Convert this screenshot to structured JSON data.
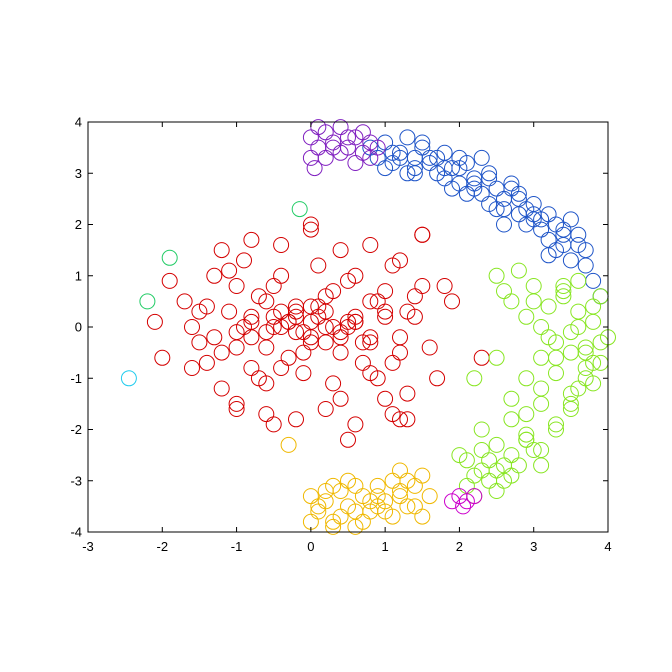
{
  "chart_data": {
    "type": "scatter",
    "title": "",
    "xlabel": "",
    "ylabel": "",
    "xlim": [
      -3,
      4
    ],
    "ylim": [
      -4,
      4
    ],
    "xticks": [
      "-3",
      "-2",
      "-1",
      "0",
      "1",
      "2",
      "3",
      "4"
    ],
    "yticks": [
      "-4",
      "-3",
      "-2",
      "-1",
      "0",
      "1",
      "2",
      "3",
      "4"
    ],
    "grid": false,
    "legend": "none",
    "marker": "open-circle",
    "series": [
      {
        "color": "#d40000",
        "x": [
          -1.9,
          -1.7,
          -1.6,
          -1.5,
          -1.4,
          -1.3,
          -1.2,
          -1.1,
          -1.0,
          -0.9,
          -0.8,
          -0.7,
          -0.6,
          -0.5,
          -0.4,
          -0.3,
          -0.2,
          -0.1,
          0.0,
          0.1,
          0.2,
          0.3,
          0.4,
          0.5,
          0.6,
          0.7,
          0.8,
          0.9,
          1.0,
          1.1,
          1.2,
          1.3,
          1.4,
          1.5,
          1.6,
          -1.6,
          -1.4,
          -1.2,
          -1.0,
          -0.8,
          -0.6,
          -0.4,
          -0.2,
          0.0,
          0.2,
          0.4,
          0.6,
          0.8,
          1.0,
          1.2,
          1.4,
          -1.5,
          -1.3,
          -1.1,
          -0.9,
          -0.7,
          -0.5,
          -0.3,
          -0.1,
          0.1,
          0.3,
          0.5,
          0.7,
          0.9,
          1.1,
          1.3,
          -1.2,
          -1.0,
          -0.8,
          -0.6,
          -0.4,
          -0.2,
          0.0,
          0.2,
          0.4,
          0.6,
          0.8,
          1.0,
          1.2,
          -1.0,
          -0.8,
          -0.6,
          -0.4,
          -0.2,
          0.0,
          0.2,
          0.4,
          0.6,
          0.8,
          1.0,
          -0.8,
          -0.6,
          -0.4,
          -0.2,
          0.0,
          0.2,
          0.4,
          0.6,
          0.8,
          -0.5,
          -0.3,
          -0.1,
          0.1,
          0.3,
          0.5,
          -2.0,
          -2.1,
          -1.0,
          -0.5,
          0.0,
          0.5,
          1.1,
          1.3,
          1.5,
          1.7,
          1.8,
          1.9,
          2.3,
          1.5,
          1.2
        ],
        "y": [
          0.9,
          0.5,
          0.0,
          -0.3,
          -0.7,
          1.0,
          -1.2,
          0.3,
          -0.4,
          1.3,
          -0.8,
          0.6,
          -1.1,
          0.2,
          1.0,
          -0.6,
          0.4,
          -0.9,
          0.1,
          1.2,
          -0.3,
          0.7,
          -1.4,
          0.0,
          1.0,
          -0.7,
          0.5,
          -1.0,
          0.3,
          1.2,
          -0.5,
          -1.3,
          0.2,
          0.8,
          -0.4,
          -0.8,
          0.4,
          -0.5,
          0.8,
          -0.2,
          0.5,
          -0.8,
          0.3,
          -0.3,
          0.6,
          -0.5,
          0.2,
          -0.9,
          0.7,
          -0.2,
          0.6,
          0.3,
          -0.2,
          1.1,
          0.0,
          -1.0,
          0.8,
          0.1,
          -0.5,
          0.4,
          -1.1,
          0.9,
          -0.3,
          0.5,
          -0.7,
          0.3,
          1.5,
          -1.5,
          1.7,
          -1.7,
          1.6,
          -1.8,
          1.9,
          -1.6,
          1.5,
          -1.9,
          1.6,
          -1.4,
          1.3,
          -0.1,
          0.2,
          -0.4,
          0.3,
          -0.1,
          0.4,
          0.0,
          -0.2,
          0.1,
          -0.3,
          0.2,
          0.1,
          -0.1,
          0.0,
          0.2,
          -0.2,
          0.3,
          -0.1,
          0.1,
          -0.2,
          0.0,
          0.1,
          -0.1,
          0.2,
          0.0,
          0.1,
          -0.6,
          0.1,
          -1.6,
          -1.9,
          2.0,
          -2.2,
          -1.7,
          -1.8,
          1.8,
          -1.0,
          0.8,
          0.5,
          -0.6,
          1.8,
          -1.8
        ]
      },
      {
        "color": "#1f55c8",
        "x": [
          0.8,
          0.9,
          1.0,
          1.1,
          1.2,
          1.3,
          1.4,
          1.5,
          1.6,
          1.7,
          1.8,
          1.9,
          2.0,
          2.1,
          2.2,
          2.3,
          2.4,
          2.5,
          2.6,
          2.7,
          2.8,
          2.9,
          3.0,
          3.1,
          3.2,
          3.3,
          3.4,
          3.5,
          3.6,
          3.7,
          3.8,
          3.9,
          1.0,
          1.2,
          1.4,
          1.6,
          1.8,
          2.0,
          2.2,
          2.4,
          2.6,
          2.8,
          3.0,
          3.2,
          3.4,
          3.6,
          1.1,
          1.3,
          1.5,
          1.7,
          1.9,
          2.1,
          2.3,
          2.5,
          2.7,
          2.9,
          3.1,
          3.3,
          3.5,
          3.7,
          2.0,
          2.4,
          2.8,
          3.2,
          1.4,
          1.8,
          2.2,
          2.6,
          3.0,
          3.4
        ],
        "y": [
          3.5,
          3.3,
          3.6,
          3.2,
          3.4,
          3.7,
          3.1,
          3.5,
          3.3,
          3.0,
          3.4,
          3.1,
          2.8,
          3.2,
          2.9,
          2.6,
          3.0,
          2.7,
          2.3,
          2.8,
          2.5,
          2.0,
          2.4,
          2.1,
          1.7,
          2.0,
          1.6,
          1.3,
          1.6,
          1.2,
          0.9,
          0.6,
          3.1,
          3.3,
          3.0,
          3.2,
          2.9,
          3.1,
          2.7,
          2.9,
          2.5,
          2.6,
          2.2,
          2.2,
          1.9,
          1.8,
          3.4,
          3.0,
          3.6,
          3.3,
          2.7,
          2.6,
          3.3,
          2.3,
          2.7,
          2.3,
          1.9,
          1.5,
          2.1,
          1.5,
          3.3,
          2.4,
          2.2,
          1.4,
          3.3,
          3.1,
          2.8,
          2.0,
          2.1,
          1.8
        ]
      },
      {
        "color": "#8020c0",
        "x": [
          0.0,
          0.1,
          0.2,
          0.3,
          0.4,
          0.5,
          0.6,
          0.7,
          0.8,
          0.9,
          0.0,
          0.2,
          0.4,
          0.6,
          0.8,
          0.1,
          0.3,
          0.5,
          0.7,
          0.05
        ],
        "y": [
          3.7,
          3.5,
          3.8,
          3.6,
          3.9,
          3.5,
          3.7,
          3.4,
          3.6,
          3.5,
          3.3,
          3.3,
          3.4,
          3.2,
          3.3,
          3.9,
          3.5,
          3.7,
          3.8,
          3.1
        ]
      },
      {
        "color": "#88e622",
        "x": [
          2.5,
          2.6,
          2.7,
          2.8,
          2.9,
          3.0,
          3.1,
          3.2,
          3.3,
          3.4,
          3.5,
          3.6,
          3.7,
          3.8,
          3.9,
          4.0,
          3.0,
          3.2,
          3.4,
          3.6,
          3.8,
          3.1,
          3.3,
          3.5,
          3.7,
          3.9,
          2.9,
          3.1,
          3.3,
          3.5,
          3.7,
          2.7,
          2.9,
          3.1,
          3.3,
          3.5,
          2.3,
          2.5,
          2.7,
          2.9,
          3.1,
          3.3,
          2.1,
          2.3,
          2.5,
          2.7,
          2.9,
          3.1,
          2.0,
          2.2,
          2.4,
          2.6,
          2.8,
          3.0,
          2.1,
          2.3,
          2.5,
          2.7,
          2.9,
          2.2,
          2.4,
          2.6,
          3.6,
          3.8,
          3.5,
          3.7,
          3.4,
          3.6,
          3.9,
          3.8,
          2.5,
          2.2
        ],
        "y": [
          1.0,
          0.7,
          0.5,
          1.1,
          0.2,
          0.8,
          0.0,
          0.4,
          -0.3,
          0.6,
          -0.1,
          0.3,
          -0.5,
          0.1,
          -0.3,
          -0.2,
          0.5,
          -0.2,
          0.7,
          0.0,
          0.4,
          -0.6,
          -0.9,
          -0.5,
          -0.8,
          -0.7,
          -1.0,
          -1.2,
          -0.6,
          -1.3,
          -1.0,
          -1.4,
          -1.7,
          -1.5,
          -1.9,
          -1.6,
          -2.0,
          -2.3,
          -1.8,
          -2.2,
          -2.4,
          -2.0,
          -2.6,
          -2.4,
          -2.8,
          -2.5,
          -2.1,
          -2.7,
          -2.5,
          -2.9,
          -2.6,
          -3.0,
          -2.7,
          -2.4,
          -3.1,
          -2.8,
          -3.2,
          -2.9,
          -2.2,
          -3.3,
          -3.0,
          -2.7,
          -1.2,
          -1.1,
          -1.5,
          -0.4,
          0.8,
          0.9,
          0.6,
          -0.7,
          -0.6,
          -1.0
        ]
      },
      {
        "color": "#f0b800",
        "x": [
          0.0,
          0.1,
          0.2,
          0.3,
          0.4,
          0.5,
          0.6,
          0.7,
          0.8,
          0.9,
          1.0,
          1.1,
          1.2,
          1.3,
          1.4,
          1.5,
          1.6,
          0.0,
          0.2,
          0.4,
          0.6,
          0.8,
          1.0,
          1.2,
          1.4,
          0.1,
          0.3,
          0.5,
          0.7,
          0.9,
          1.1,
          1.3,
          1.5,
          0.3,
          0.6,
          0.9,
          1.2,
          -0.3
        ],
        "y": [
          -3.3,
          -3.6,
          -3.4,
          -3.8,
          -3.2,
          -3.5,
          -3.9,
          -3.3,
          -3.6,
          -3.1,
          -3.4,
          -3.7,
          -3.2,
          -3.0,
          -3.5,
          -2.9,
          -3.3,
          -3.8,
          -3.2,
          -3.7,
          -3.1,
          -3.4,
          -3.6,
          -3.3,
          -3.1,
          -3.5,
          -3.9,
          -3.0,
          -3.8,
          -3.3,
          -3.0,
          -3.5,
          -3.7,
          -3.1,
          -3.6,
          -3.5,
          -2.8,
          -2.3
        ]
      },
      {
        "color": "#cc00cc",
        "x": [
          1.9,
          2.0,
          2.1,
          2.2,
          2.05
        ],
        "y": [
          -3.4,
          -3.3,
          -3.4,
          -3.3,
          -3.5
        ]
      },
      {
        "color": "#22cc66",
        "x": [
          -1.9,
          -2.2,
          -0.15
        ],
        "y": [
          1.35,
          0.5,
          2.3
        ]
      },
      {
        "color": "#22ccee",
        "x": [
          -2.45
        ],
        "y": [
          -1.0
        ]
      }
    ]
  }
}
